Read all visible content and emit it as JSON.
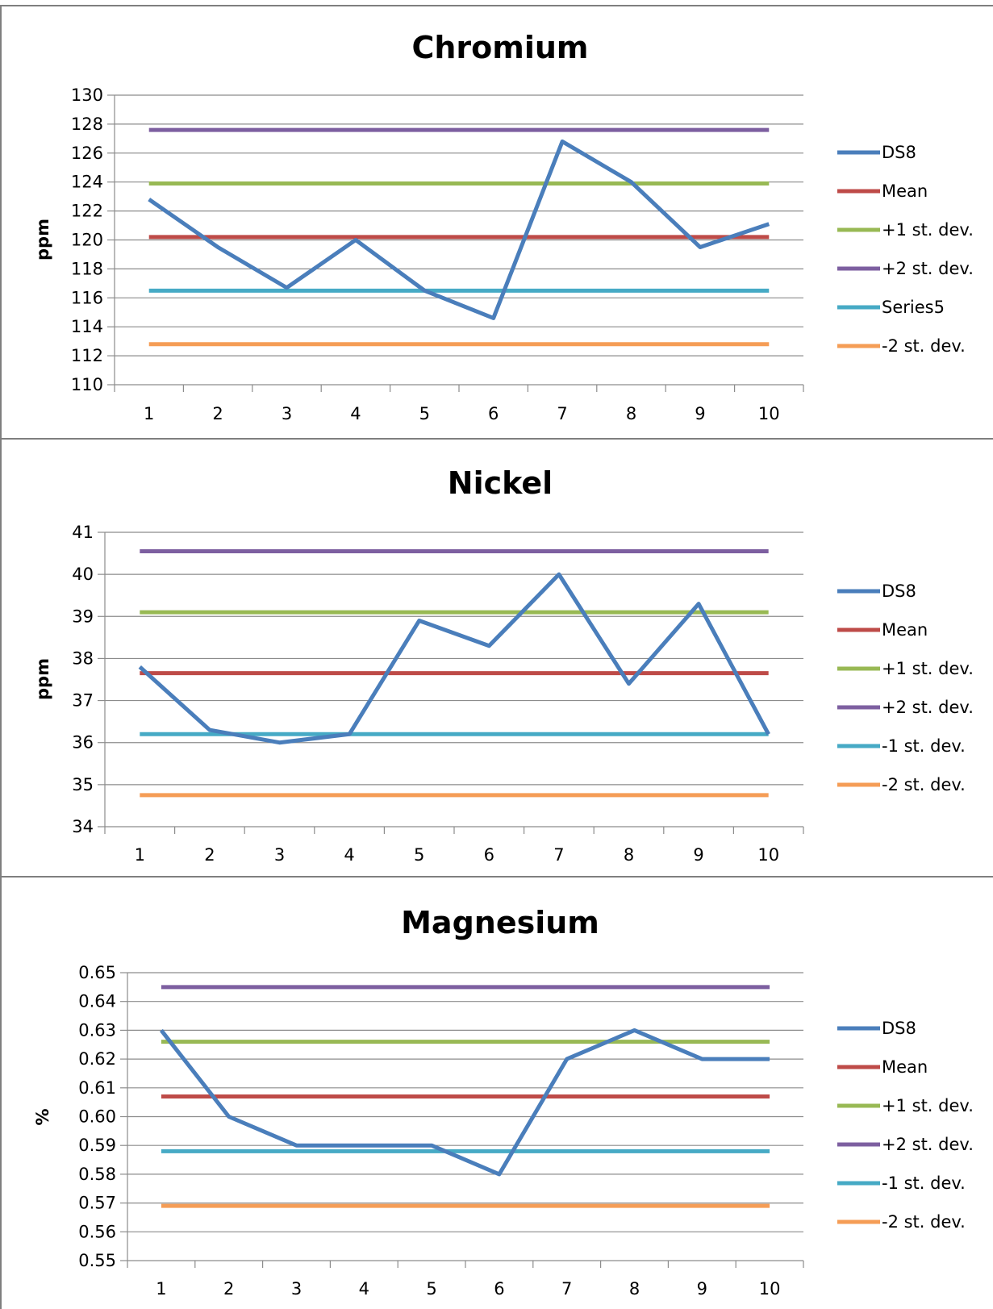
{
  "chart_data": [
    {
      "type": "line",
      "title": "Chromium",
      "ylabel": "ppm",
      "xlabel": "",
      "x": [
        1,
        2,
        3,
        4,
        5,
        6,
        7,
        8,
        9,
        10
      ],
      "ylim": [
        110,
        130
      ],
      "ystep": 2,
      "ytick_decimals": 0,
      "grid": true,
      "legend": "right",
      "series": [
        {
          "name": "DS8",
          "color": "#4a7ebb",
          "values": [
            122.8,
            119.5,
            116.7,
            120.0,
            116.5,
            114.6,
            126.8,
            124.0,
            119.5,
            121.1
          ]
        },
        {
          "name": "Mean",
          "color": "#be4b48",
          "values": [
            120.2,
            120.2,
            120.2,
            120.2,
            120.2,
            120.2,
            120.2,
            120.2,
            120.2,
            120.2
          ]
        },
        {
          "name": "+1 st. dev.",
          "color": "#98b954",
          "values": [
            123.9,
            123.9,
            123.9,
            123.9,
            123.9,
            123.9,
            123.9,
            123.9,
            123.9,
            123.9
          ]
        },
        {
          "name": "+2 st. dev.",
          "color": "#7d5fa0",
          "values": [
            127.6,
            127.6,
            127.6,
            127.6,
            127.6,
            127.6,
            127.6,
            127.6,
            127.6,
            127.6
          ]
        },
        {
          "name": "Series5",
          "color": "#46aac5",
          "values": [
            116.5,
            116.5,
            116.5,
            116.5,
            116.5,
            116.5,
            116.5,
            116.5,
            116.5,
            116.5
          ]
        },
        {
          "name": "-2 st. dev.",
          "color": "#f59d56",
          "values": [
            112.8,
            112.8,
            112.8,
            112.8,
            112.8,
            112.8,
            112.8,
            112.8,
            112.8,
            112.8
          ]
        }
      ]
    },
    {
      "type": "line",
      "title": "Nickel",
      "ylabel": "ppm",
      "xlabel": "",
      "x": [
        1,
        2,
        3,
        4,
        5,
        6,
        7,
        8,
        9,
        10
      ],
      "ylim": [
        34,
        41
      ],
      "ystep": 1,
      "ytick_decimals": 0,
      "grid": true,
      "legend": "right",
      "series": [
        {
          "name": "DS8",
          "color": "#4a7ebb",
          "values": [
            37.8,
            36.3,
            36.0,
            36.2,
            38.9,
            38.3,
            40.0,
            37.4,
            39.3,
            36.2
          ]
        },
        {
          "name": "Mean",
          "color": "#be4b48",
          "values": [
            37.65,
            37.65,
            37.65,
            37.65,
            37.65,
            37.65,
            37.65,
            37.65,
            37.65,
            37.65
          ]
        },
        {
          "name": "+1 st. dev.",
          "color": "#98b954",
          "values": [
            39.1,
            39.1,
            39.1,
            39.1,
            39.1,
            39.1,
            39.1,
            39.1,
            39.1,
            39.1
          ]
        },
        {
          "name": "+2 st. dev.",
          "color": "#7d5fa0",
          "values": [
            40.55,
            40.55,
            40.55,
            40.55,
            40.55,
            40.55,
            40.55,
            40.55,
            40.55,
            40.55
          ]
        },
        {
          "name": "-1 st. dev.",
          "color": "#46aac5",
          "values": [
            36.2,
            36.2,
            36.2,
            36.2,
            36.2,
            36.2,
            36.2,
            36.2,
            36.2,
            36.2
          ]
        },
        {
          "name": "-2 st. dev.",
          "color": "#f59d56",
          "values": [
            34.75,
            34.75,
            34.75,
            34.75,
            34.75,
            34.75,
            34.75,
            34.75,
            34.75,
            34.75
          ]
        }
      ]
    },
    {
      "type": "line",
      "title": "Magnesium",
      "ylabel": "%",
      "xlabel": "",
      "x": [
        1,
        2,
        3,
        4,
        5,
        6,
        7,
        8,
        9,
        10
      ],
      "ylim": [
        0.55,
        0.65
      ],
      "ystep": 0.01,
      "ytick_decimals": 2,
      "grid": true,
      "legend": "right",
      "series": [
        {
          "name": "DS8",
          "color": "#4a7ebb",
          "values": [
            0.63,
            0.6,
            0.59,
            0.59,
            0.59,
            0.58,
            0.62,
            0.63,
            0.62,
            0.62
          ]
        },
        {
          "name": "Mean",
          "color": "#be4b48",
          "values": [
            0.607,
            0.607,
            0.607,
            0.607,
            0.607,
            0.607,
            0.607,
            0.607,
            0.607,
            0.607
          ]
        },
        {
          "name": "+1 st. dev.",
          "color": "#98b954",
          "values": [
            0.626,
            0.626,
            0.626,
            0.626,
            0.626,
            0.626,
            0.626,
            0.626,
            0.626,
            0.626
          ]
        },
        {
          "name": "+2 st. dev.",
          "color": "#7d5fa0",
          "values": [
            0.645,
            0.645,
            0.645,
            0.645,
            0.645,
            0.645,
            0.645,
            0.645,
            0.645,
            0.645
          ]
        },
        {
          "name": "-1 st. dev.",
          "color": "#46aac5",
          "values": [
            0.588,
            0.588,
            0.588,
            0.588,
            0.588,
            0.588,
            0.588,
            0.588,
            0.588,
            0.588
          ]
        },
        {
          "name": "-2 st. dev.",
          "color": "#f59d56",
          "values": [
            0.569,
            0.569,
            0.569,
            0.569,
            0.569,
            0.569,
            0.569,
            0.569,
            0.569,
            0.569
          ]
        }
      ]
    }
  ]
}
